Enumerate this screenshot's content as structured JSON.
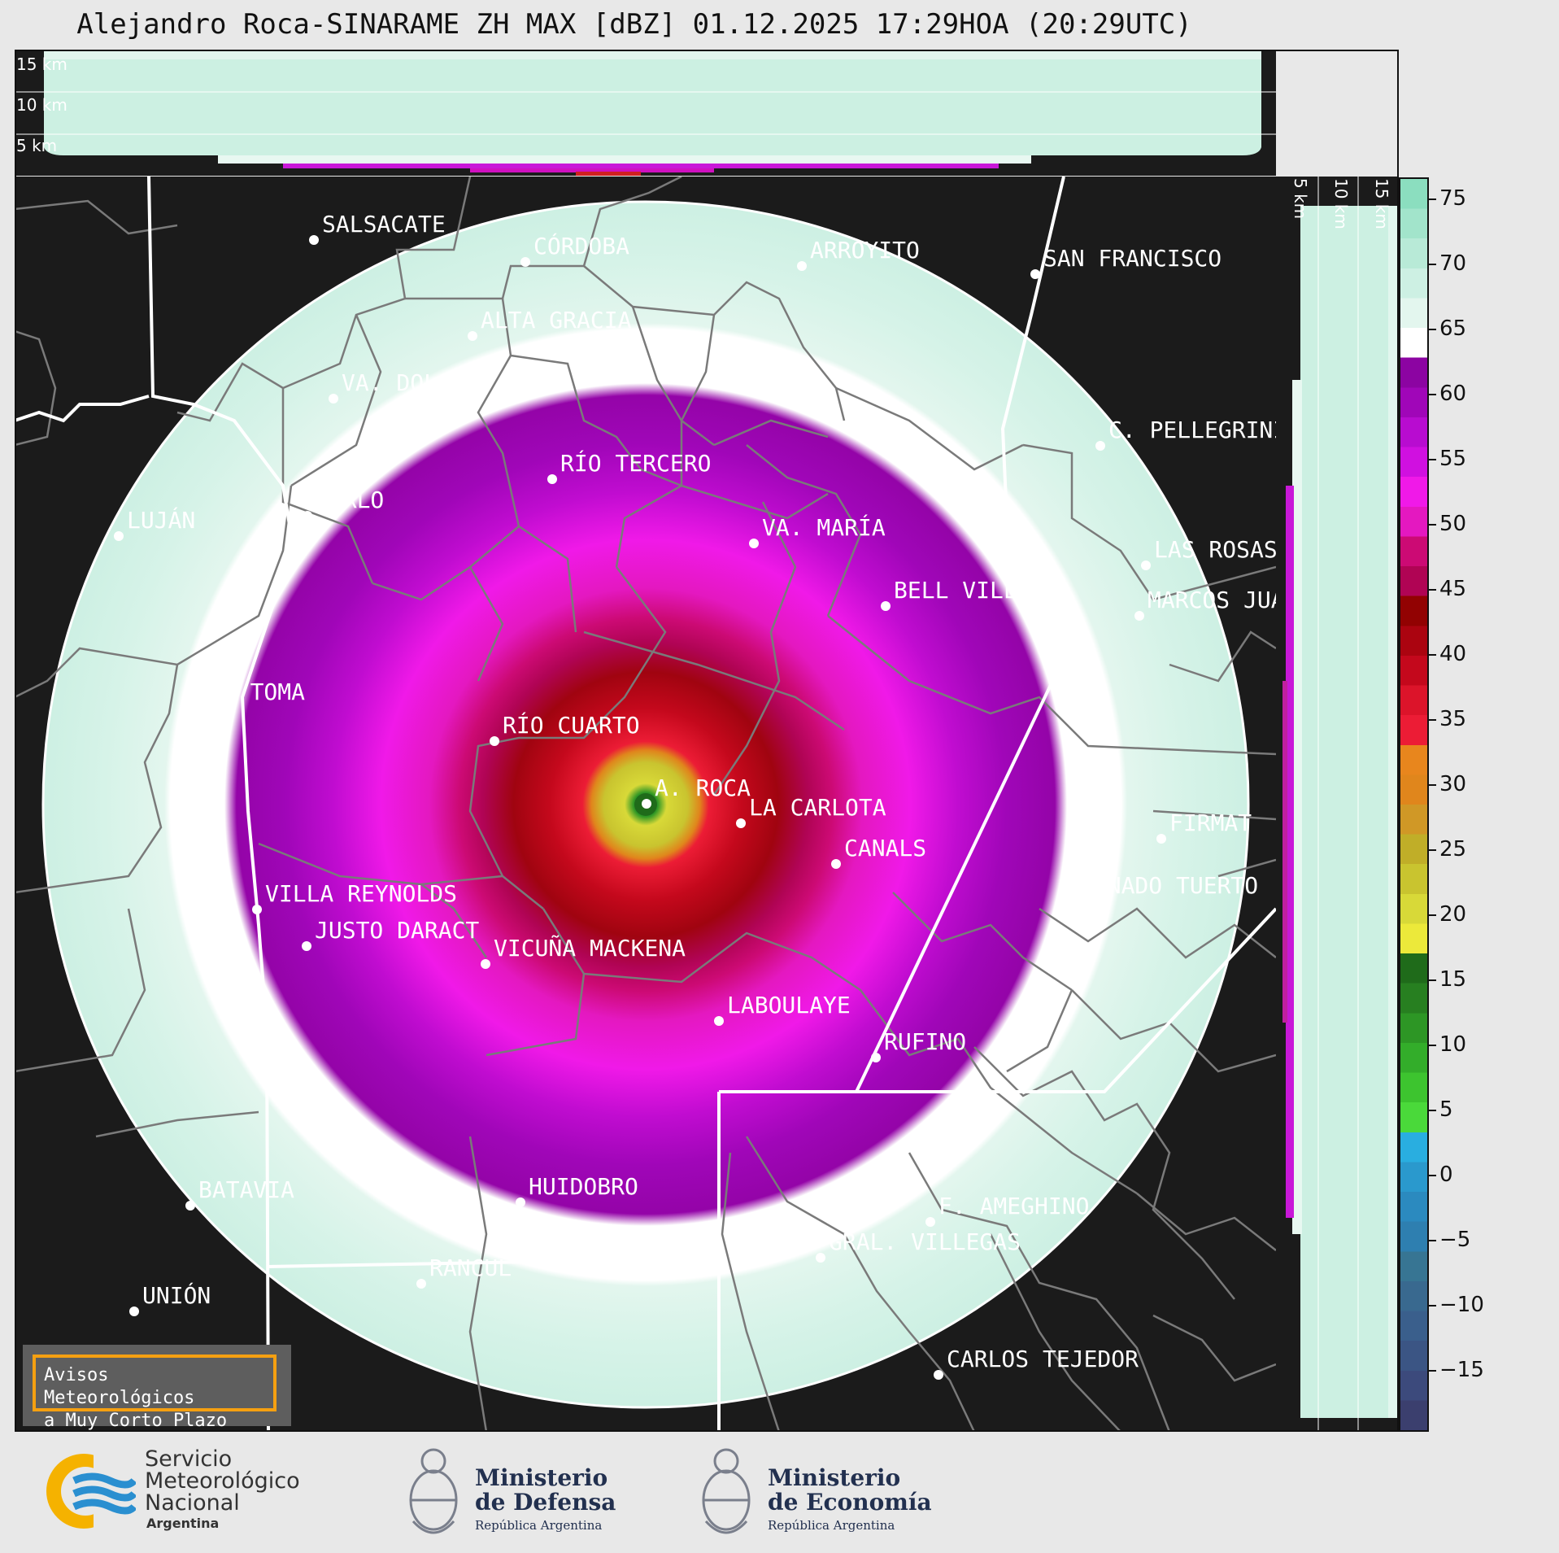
{
  "header": {
    "title": "Alejandro Roca-SINARAME ZH MAX [dBZ] 01.12.2025 17:29HOA (20:29UTC)"
  },
  "height_panels": {
    "top_labels": [
      "15 km",
      "10 km",
      "5 km"
    ],
    "right_labels": [
      "5 km",
      "10 km",
      "15 km"
    ]
  },
  "cities": [
    {
      "name": "SALSACATE"
    },
    {
      "name": "CÓRDOBA"
    },
    {
      "name": "ARROYITO"
    },
    {
      "name": "SAN FRANCISCO"
    },
    {
      "name": "ALTA GRACIA"
    },
    {
      "name": "VA. DOLORES"
    },
    {
      "name": "C. PELLEGRINI"
    },
    {
      "name": "RÍO TERCERO"
    },
    {
      "name": "MERLO"
    },
    {
      "name": "LUJÁN"
    },
    {
      "name": "VA. MARÍA"
    },
    {
      "name": "LAS ROSAS"
    },
    {
      "name": "BELL VILLE"
    },
    {
      "name": "MARCOS JUÁREZ"
    },
    {
      "name": "LA TOMA"
    },
    {
      "name": "RÍO CUARTO"
    },
    {
      "name": "A. ROCA"
    },
    {
      "name": "LA CARLOTA"
    },
    {
      "name": "FIRMAT"
    },
    {
      "name": "CANALS"
    },
    {
      "name": "VILLA REYNOLDS"
    },
    {
      "name": "VENADO TUERTO"
    },
    {
      "name": "JUSTO DARACT"
    },
    {
      "name": "VICUÑA MACKENA"
    },
    {
      "name": "LABOULAYE"
    },
    {
      "name": "RUFINO"
    },
    {
      "name": "BATAVIA"
    },
    {
      "name": "HUIDOBRO"
    },
    {
      "name": "F. AMEGHINO"
    },
    {
      "name": "RANCUL"
    },
    {
      "name": "GRAL. VILLEGAS"
    },
    {
      "name": "UNIÓN"
    },
    {
      "name": "CARLOS TEJEDOR"
    }
  ],
  "colorbar": {
    "ticks": [
      "75",
      "70",
      "65",
      "60",
      "55",
      "50",
      "45",
      "40",
      "35",
      "30",
      "25",
      "20",
      "15",
      "10",
      "5",
      "0",
      "−5",
      "−10",
      "−15"
    ],
    "scale": [
      "#3b3f6e",
      "#3c4a7c",
      "#3b5584",
      "#3a5f8c",
      "#39698f",
      "#377593",
      "#2e7fb0",
      "#2b8abf",
      "#2a99cd",
      "#29aee0",
      "#4ad93a",
      "#3dc42f",
      "#33ad2a",
      "#2d9625",
      "#277f20",
      "#1f6b1a",
      "#ece93a",
      "#d8d938",
      "#c9c42f",
      "#c0ae28",
      "#d09826",
      "#e0861c",
      "#e8861d",
      "#ec1c35",
      "#dc142a",
      "#c4081c",
      "#ab0410",
      "#920202",
      "#b00454",
      "#cc0a74",
      "#e418c0",
      "#f019e8",
      "#d010e0",
      "#b80cd0",
      "#a006b8",
      "#8c04a2",
      "#ffffff",
      "#e3f6ee",
      "#cdf0e3",
      "#b8ead7",
      "#a2e4cb",
      "#8bdebf"
    ]
  },
  "warning_box": {
    "line1": "Avisos Meteorológicos",
    "line2": "a Muy Corto Plazo"
  },
  "footer": {
    "smn_line1": "Servicio",
    "smn_line2": "Meteorológico",
    "smn_line3": "Nacional",
    "smn_line4": "Argentina",
    "defensa_line1": "Ministerio",
    "defensa_line2": "de Defensa",
    "defensa_line3": "República Argentina",
    "economia_line1": "Ministerio",
    "economia_line2": "de Economía",
    "economia_line3": "República Argentina"
  }
}
